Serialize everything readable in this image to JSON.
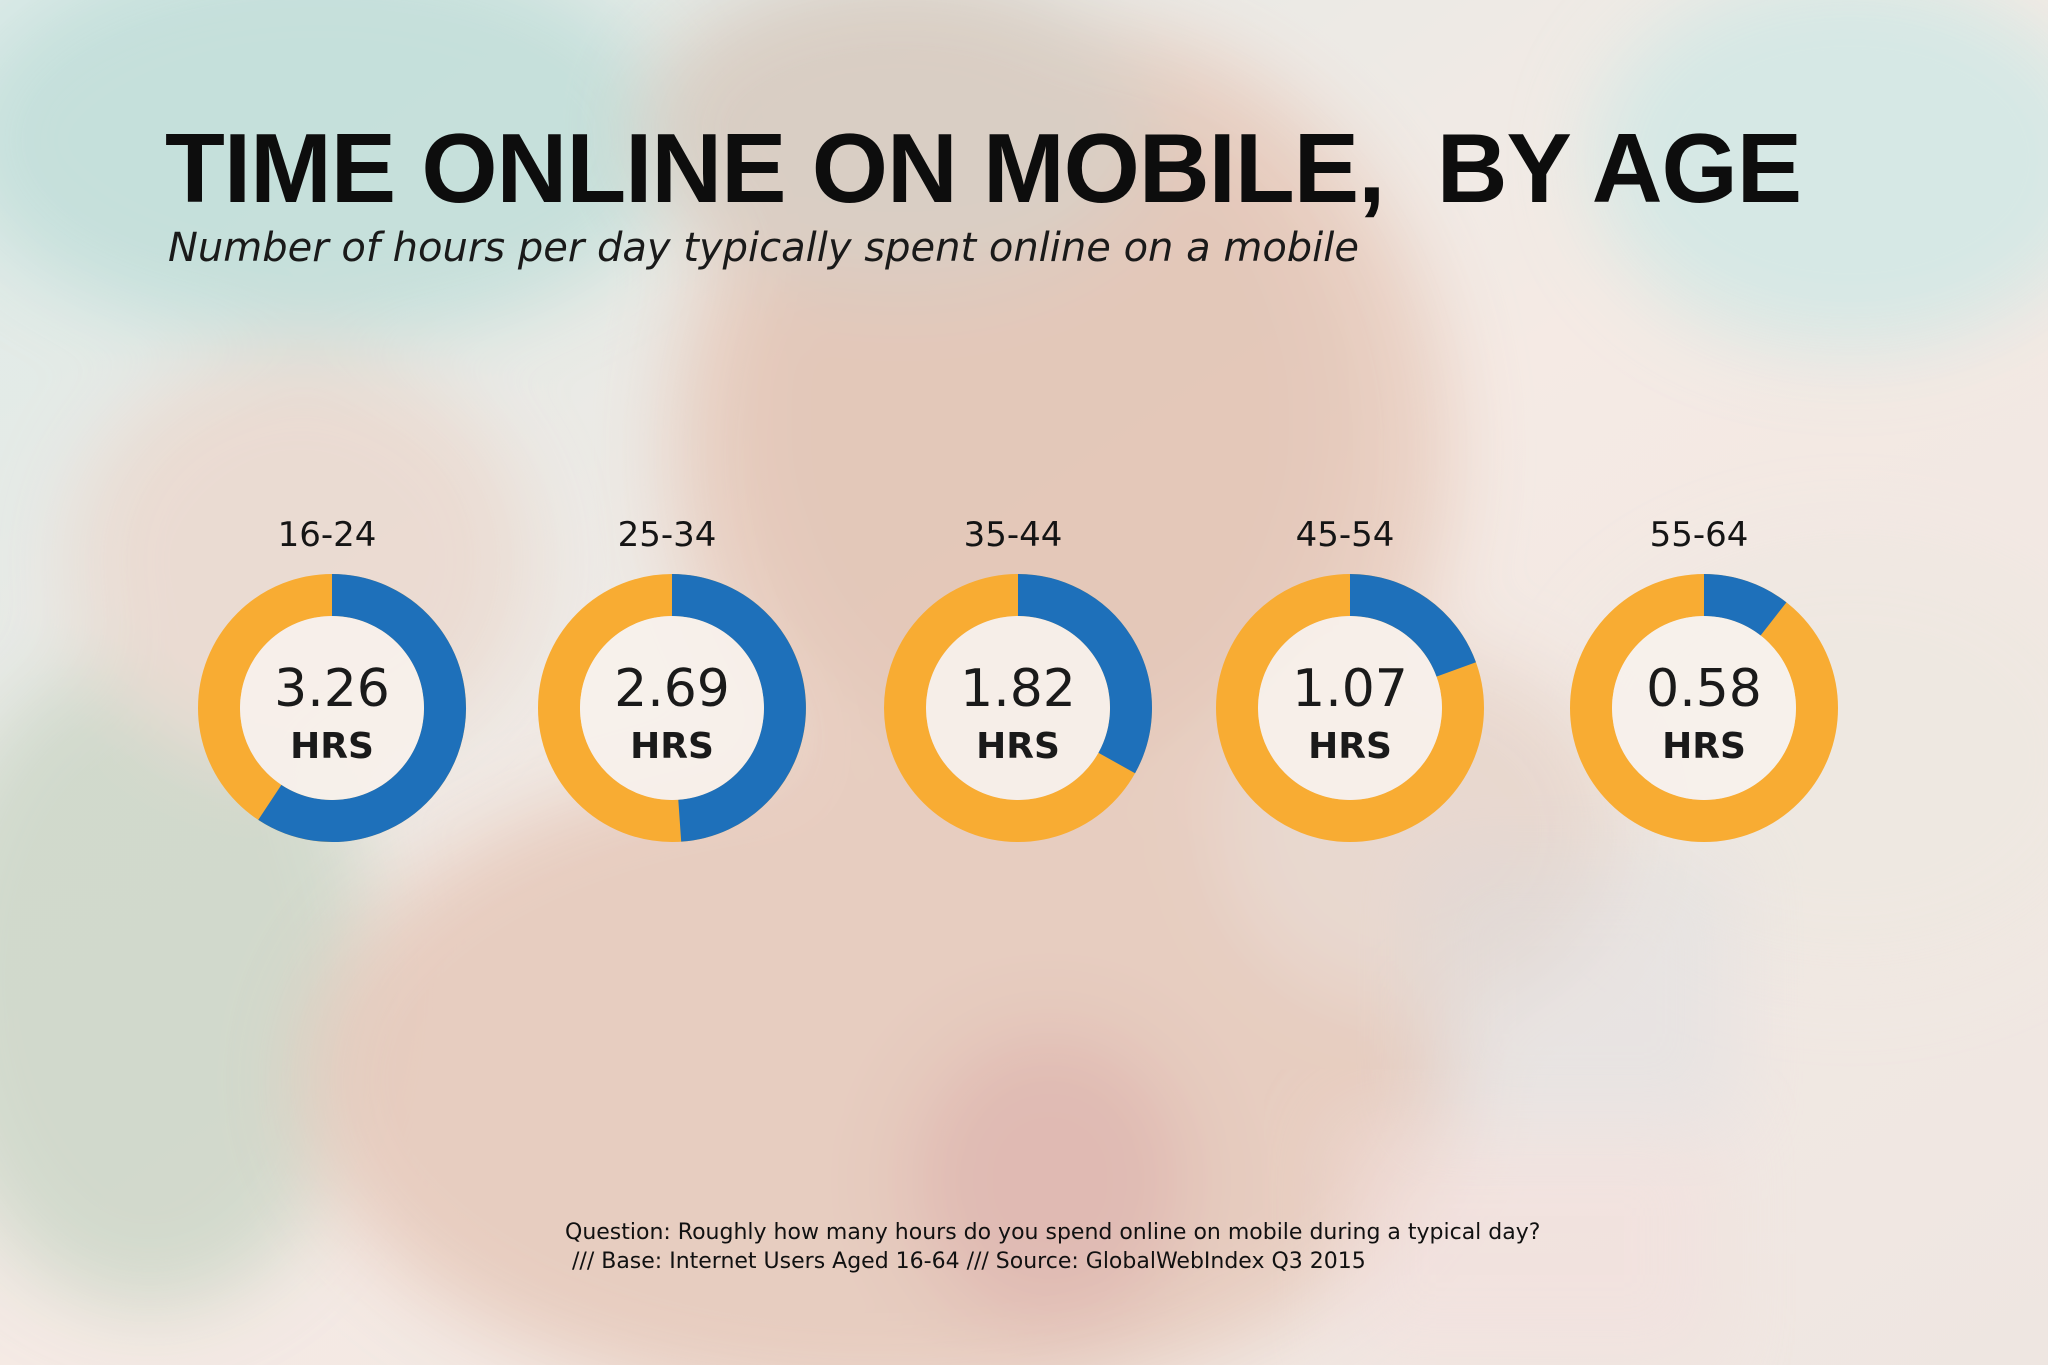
{
  "title": "TIME ONLINE ON MOBILE,  BY AGE",
  "subtitle": "Number of hours per day typically spent online on a mobile",
  "colors": {
    "blue": "#1E70BA",
    "orange": "#F8AC33",
    "donut_center": "#F7F1EC"
  },
  "chart_data": {
    "type": "donut",
    "title": "TIME ONLINE ON MOBILE,  BY AGE",
    "subtitle": "Number of hours per day typically spent online on a mobile",
    "max_hours": 5.5,
    "unit": "HRS",
    "items": [
      {
        "age": "16-24",
        "hours": 3.26,
        "label": "3.26",
        "unit": "HRS"
      },
      {
        "age": "25-34",
        "hours": 2.69,
        "label": "2.69",
        "unit": "HRS"
      },
      {
        "age": "35-44",
        "hours": 1.82,
        "label": "1.82",
        "unit": "HRS"
      },
      {
        "age": "45-54",
        "hours": 1.07,
        "label": "1.07",
        "unit": "HRS"
      },
      {
        "age": "55-64",
        "hours": 0.58,
        "label": "0.58",
        "unit": "HRS"
      }
    ]
  },
  "footnote": {
    "line1": "Question: Roughly how many hours do you spend online on mobile during a typical day?",
    "line2": " /// Base: Internet Users Aged 16-64 /// Source: GlobalWebIndex Q3 2015"
  }
}
